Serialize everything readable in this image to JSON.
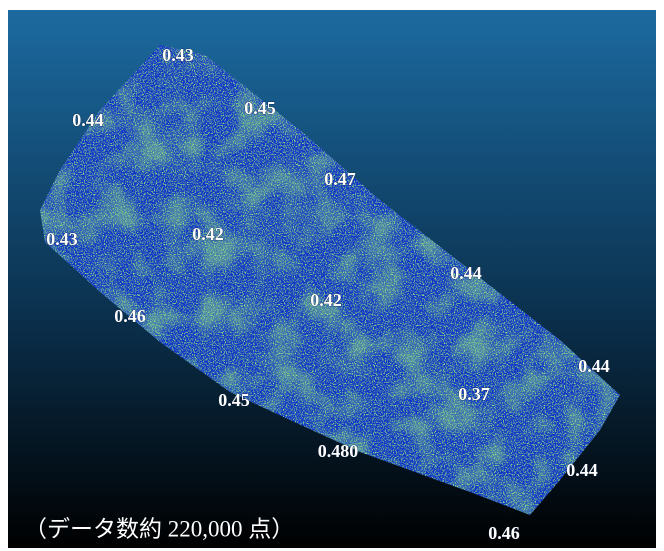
{
  "labels": [
    "0.43",
    "0.44",
    "0.45",
    "0.47",
    "0.43",
    "0.42",
    "0.44",
    "0.46",
    "0.42",
    "0.44",
    "0.37",
    "0.45",
    "0.480",
    "0.44",
    "0.46"
  ],
  "caption": "（データ数約 220,000 点）"
}
